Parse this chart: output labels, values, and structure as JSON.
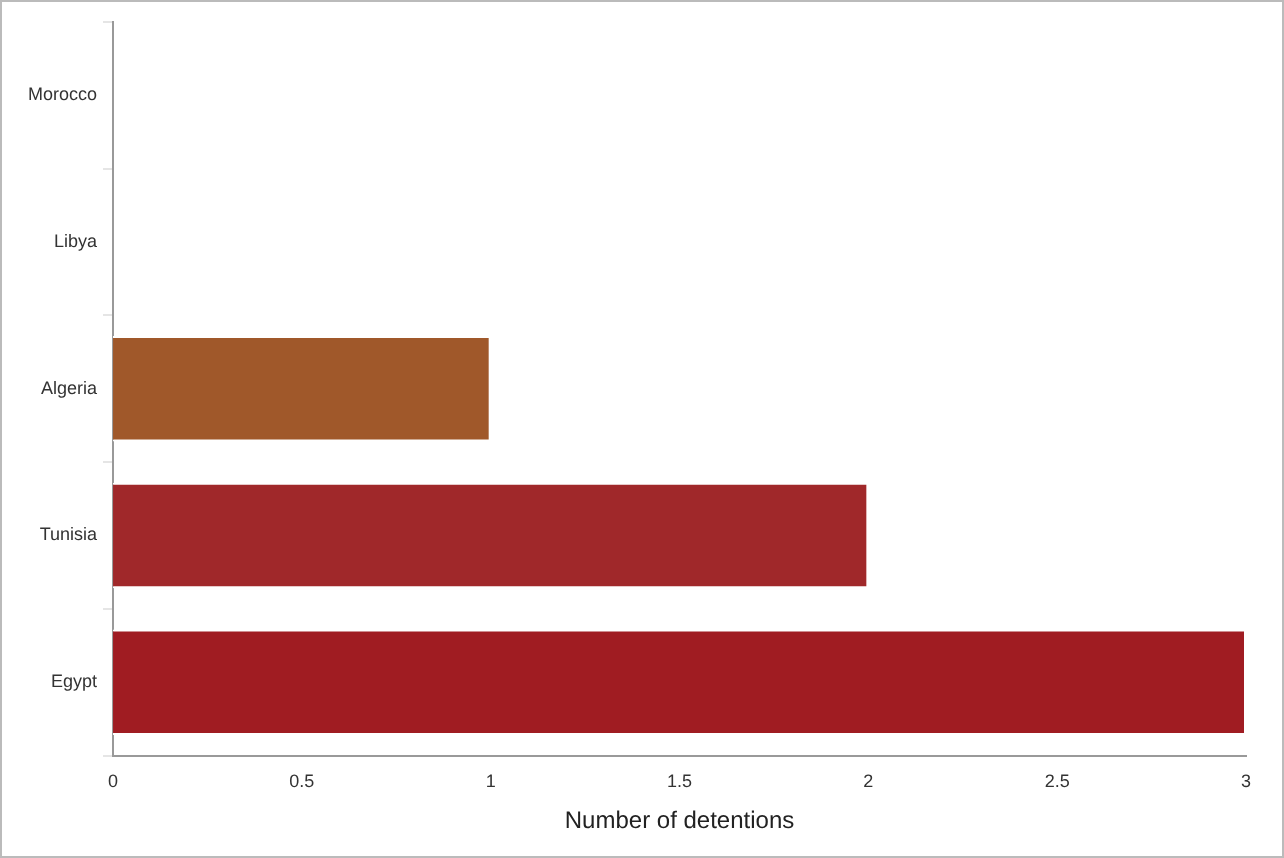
{
  "chart_data": {
    "type": "bar",
    "orientation": "horizontal",
    "categories": [
      "Morocco",
      "Libya",
      "Algeria",
      "Tunisia",
      "Egypt"
    ],
    "values": [
      0,
      0,
      1,
      2,
      3
    ],
    "colors": [
      "#a0582a",
      "#a0582a",
      "#a0582a",
      "#a0282a",
      "#a01c22"
    ],
    "xlabel": "Number of detentions",
    "xlim": [
      0,
      3
    ],
    "xticks": [
      0,
      0.5,
      1,
      1.5,
      2,
      2.5,
      3
    ],
    "grid": false,
    "legend": false
  }
}
